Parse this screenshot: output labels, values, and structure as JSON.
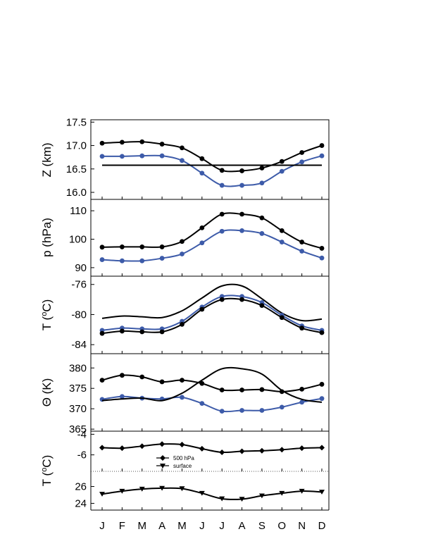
{
  "months": [
    "J",
    "F",
    "M",
    "A",
    "M",
    "J",
    "J",
    "A",
    "S",
    "O",
    "N",
    "D"
  ],
  "colors": {
    "black": "#000000",
    "blue": "#3d5ba9"
  },
  "chart_data": [
    {
      "type": "line",
      "panel": "Z",
      "ylabel_main": "Z (km)",
      "ylim": [
        15.85,
        17.55
      ],
      "yticks": [
        16.0,
        16.5,
        17.0,
        17.5
      ],
      "ytick_labels": [
        "16.0",
        "16.5",
        "17.0",
        "17.5"
      ],
      "categories": [
        "J",
        "F",
        "M",
        "A",
        "M",
        "J",
        "J",
        "A",
        "S",
        "O",
        "N",
        "D"
      ],
      "series": [
        {
          "color": "black",
          "markers": "circle",
          "values": [
            17.05,
            17.07,
            17.08,
            17.03,
            16.95,
            16.72,
            16.47,
            16.46,
            16.52,
            16.66,
            16.85,
            17.0
          ]
        },
        {
          "color": "blue",
          "markers": "circle",
          "values": [
            16.77,
            16.77,
            16.78,
            16.78,
            16.68,
            16.41,
            16.15,
            16.15,
            16.2,
            16.45,
            16.65,
            16.78
          ]
        },
        {
          "color": "black",
          "markers": "none",
          "values": [
            16.58,
            16.58,
            16.58,
            16.58,
            16.58,
            16.58,
            16.58,
            16.58,
            16.58,
            16.58,
            16.58,
            16.58
          ]
        }
      ]
    },
    {
      "type": "line",
      "panel": "p",
      "ylabel_main": "p (hPa)",
      "ylim": [
        87,
        114
      ],
      "yticks": [
        90,
        100,
        110
      ],
      "ytick_labels": [
        "90",
        "100",
        "110"
      ],
      "categories": [
        "J",
        "F",
        "M",
        "A",
        "M",
        "J",
        "J",
        "A",
        "S",
        "O",
        "N",
        "D"
      ],
      "series": [
        {
          "color": "black",
          "markers": "circle",
          "values": [
            97.2,
            97.3,
            97.3,
            97.3,
            99.2,
            104.0,
            108.8,
            108.8,
            107.5,
            103.0,
            99.0,
            96.8
          ]
        },
        {
          "color": "blue",
          "markers": "circle",
          "values": [
            92.8,
            92.4,
            92.4,
            93.3,
            94.8,
            98.7,
            102.8,
            103.0,
            102.0,
            99.0,
            95.8,
            93.4
          ]
        }
      ]
    },
    {
      "type": "line",
      "panel": "T",
      "ylabel_main": "T (",
      "ylabel_sup": "o",
      "ylabel_tail": "C)",
      "ylim": [
        -85.2,
        -74.9
      ],
      "yticks": [
        -84,
        -80,
        -76
      ],
      "ytick_labels": [
        "-84",
        "-80",
        "-76"
      ],
      "categories": [
        "J",
        "F",
        "M",
        "A",
        "M",
        "J",
        "J",
        "A",
        "S",
        "O",
        "N",
        "D"
      ],
      "series": [
        {
          "color": "black",
          "markers": "none",
          "values": [
            -80.5,
            -80.2,
            -80.3,
            -80.4,
            -79.5,
            -77.8,
            -76.2,
            -76.2,
            -77.9,
            -79.8,
            -80.8,
            -80.6
          ]
        },
        {
          "color": "blue",
          "markers": "circle",
          "values": [
            -82.1,
            -81.8,
            -81.9,
            -81.9,
            -80.9,
            -79.0,
            -77.6,
            -77.6,
            -78.4,
            -80.1,
            -81.5,
            -82.1
          ]
        },
        {
          "color": "black",
          "markers": "circle",
          "values": [
            -82.5,
            -82.2,
            -82.3,
            -82.3,
            -81.3,
            -79.3,
            -78.0,
            -78.0,
            -78.8,
            -80.4,
            -81.8,
            -82.4
          ]
        }
      ]
    },
    {
      "type": "line",
      "panel": "Theta",
      "ylabel_main": "Θ (K)",
      "ylim": [
        364.5,
        383.5
      ],
      "yticks": [
        365,
        370,
        375,
        380
      ],
      "ytick_labels": [
        "365",
        "370",
        "375",
        "380"
      ],
      "categories": [
        "J",
        "F",
        "M",
        "A",
        "M",
        "J",
        "J",
        "A",
        "S",
        "O",
        "N",
        "D"
      ],
      "series": [
        {
          "color": "black",
          "markers": "circle",
          "values": [
            377.0,
            378.2,
            377.8,
            376.6,
            377.0,
            376.2,
            374.6,
            374.6,
            374.7,
            374.2,
            374.8,
            376.0
          ]
        },
        {
          "color": "blue",
          "markers": "circle",
          "values": [
            372.3,
            373.0,
            372.6,
            372.4,
            372.8,
            371.3,
            369.4,
            369.6,
            369.6,
            370.4,
            371.6,
            372.5
          ]
        },
        {
          "color": "black",
          "markers": "none",
          "values": [
            372.0,
            372.4,
            372.6,
            372.0,
            373.8,
            377.0,
            379.8,
            379.8,
            378.5,
            374.5,
            372.3,
            371.6
          ]
        }
      ]
    },
    {
      "type": "line",
      "panel": "T-upper",
      "ylim": [
        -7.6,
        -3.7
      ],
      "yticks": [
        -6,
        -4
      ],
      "ytick_labels": [
        "-6",
        "-4"
      ],
      "categories": [
        "J",
        "F",
        "M",
        "A",
        "M",
        "J",
        "J",
        "A",
        "S",
        "O",
        "N",
        "D"
      ],
      "series": [
        {
          "name": "500 hPa",
          "color": "black",
          "markers": "diamond",
          "values": [
            -5.3,
            -5.35,
            -5.15,
            -4.95,
            -5.0,
            -5.4,
            -5.75,
            -5.65,
            -5.6,
            -5.5,
            -5.35,
            -5.3
          ]
        }
      ]
    },
    {
      "type": "line",
      "panel": "T-lower",
      "ylabel_main": "T (",
      "ylabel_sup": "o",
      "ylabel_tail": "C)",
      "ylim": [
        23.2,
        27.8
      ],
      "yticks": [
        24,
        26
      ],
      "ytick_labels": [
        "24",
        "26"
      ],
      "categories": [
        "J",
        "F",
        "M",
        "A",
        "M",
        "J",
        "J",
        "A",
        "S",
        "O",
        "N",
        "D"
      ],
      "series": [
        {
          "name": "surface",
          "color": "black",
          "markers": "triangle-down",
          "values": [
            25.1,
            25.45,
            25.7,
            25.8,
            25.75,
            25.2,
            24.55,
            24.5,
            24.9,
            25.2,
            25.45,
            25.35
          ]
        }
      ]
    }
  ]
}
